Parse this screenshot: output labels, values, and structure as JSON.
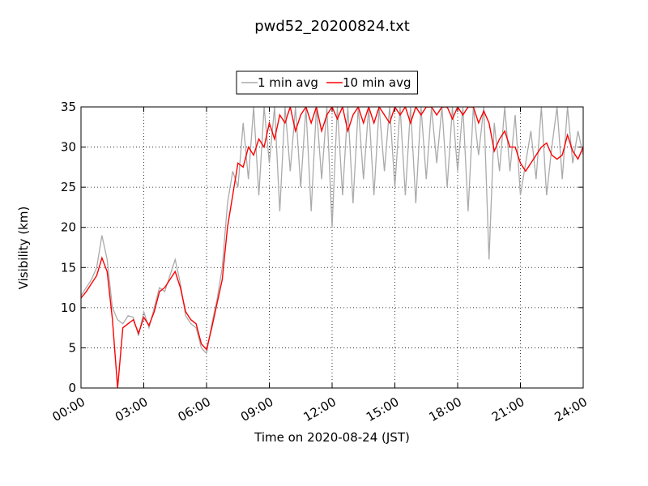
{
  "chart_data": {
    "type": "line",
    "title": "pwd52_20200824.txt",
    "x_label": "Time on 2020-08-24 (JST)",
    "y_label": "Visibility (km)",
    "x": [
      0,
      0.25,
      0.5,
      0.75,
      1,
      1.25,
      1.5,
      1.75,
      2,
      2.25,
      2.5,
      2.75,
      3,
      3.25,
      3.5,
      3.75,
      4,
      4.25,
      4.5,
      4.75,
      5,
      5.25,
      5.5,
      5.75,
      6,
      6.25,
      6.5,
      6.75,
      7,
      7.25,
      7.5,
      7.75,
      8,
      8.25,
      8.5,
      8.75,
      9,
      9.25,
      9.5,
      9.75,
      10,
      10.25,
      10.5,
      10.75,
      11,
      11.25,
      11.5,
      11.75,
      12,
      12.25,
      12.5,
      12.75,
      13,
      13.25,
      13.5,
      13.75,
      14,
      14.25,
      14.5,
      14.75,
      15,
      15.25,
      15.5,
      15.75,
      16,
      16.25,
      16.5,
      16.75,
      17,
      17.25,
      17.5,
      17.75,
      18,
      18.25,
      18.5,
      18.75,
      19,
      19.25,
      19.5,
      19.75,
      20,
      20.25,
      20.5,
      20.75,
      21,
      21.25,
      21.5,
      21.75,
      22,
      22.25,
      22.5,
      22.75,
      23,
      23.25,
      23.5,
      23.75,
      24
    ],
    "series": [
      {
        "name": "1 min avg",
        "color": "#aaaaaa",
        "values": [
          11.5,
          12.5,
          13.5,
          15,
          19,
          16,
          10,
          8.5,
          8,
          9,
          8.8,
          6.5,
          9.5,
          7.5,
          10,
          12.5,
          12,
          14,
          16,
          13,
          9,
          8,
          7.5,
          5,
          4.3,
          8,
          11,
          15,
          23,
          27,
          25,
          33,
          26,
          35,
          24,
          35,
          28,
          35,
          22,
          35,
          27,
          35,
          25,
          35,
          22,
          35,
          26,
          35,
          20,
          35,
          24,
          35,
          23,
          35,
          26,
          35,
          24,
          35,
          27,
          35,
          25,
          35,
          24,
          35,
          23,
          35,
          26,
          35,
          28,
          35,
          25,
          35,
          27,
          35,
          22,
          35,
          29,
          35,
          16,
          33,
          27,
          35,
          27,
          34,
          24,
          28,
          32,
          26,
          35,
          24,
          30,
          35,
          26,
          35,
          28,
          32,
          29
        ]
      },
      {
        "name": "10 min avg",
        "color": "#ff0000",
        "values": [
          11.2,
          12,
          13,
          14,
          16.2,
          14.5,
          8.6,
          0,
          7.5,
          8,
          8.5,
          6.8,
          8.8,
          7.8,
          9.5,
          12,
          12.5,
          13.5,
          14.5,
          12.5,
          9.5,
          8.5,
          8,
          5.5,
          4.8,
          7.5,
          10.5,
          13.5,
          20,
          24,
          28,
          27.5,
          30,
          29,
          31,
          30,
          33,
          31,
          34,
          33,
          35,
          32,
          34,
          35,
          33,
          35,
          32,
          34,
          35,
          33.5,
          35,
          32,
          34,
          35,
          33,
          35,
          33,
          35,
          34,
          33,
          35,
          34,
          35,
          33,
          35,
          34,
          35,
          35,
          34,
          35,
          35,
          33.5,
          35,
          34,
          35,
          35,
          33,
          34.5,
          33,
          29.5,
          31,
          32,
          30,
          30,
          28,
          27,
          28,
          29,
          30,
          30.5,
          29,
          28.5,
          29,
          31.5,
          29.5,
          28.5,
          30
        ]
      }
    ],
    "xlim": [
      0,
      24
    ],
    "ylim": [
      0,
      35
    ],
    "xticks": [
      {
        "value": 0,
        "label": "00:00"
      },
      {
        "value": 3,
        "label": "03:00"
      },
      {
        "value": 6,
        "label": "06:00"
      },
      {
        "value": 9,
        "label": "09:00"
      },
      {
        "value": 12,
        "label": "12:00"
      },
      {
        "value": 15,
        "label": "15:00"
      },
      {
        "value": 18,
        "label": "18:00"
      },
      {
        "value": 21,
        "label": "21:00"
      },
      {
        "value": 24,
        "label": "24:00"
      }
    ],
    "yticks": [
      0,
      5,
      10,
      15,
      20,
      25,
      30,
      35
    ],
    "grid": true,
    "legend": "top"
  }
}
